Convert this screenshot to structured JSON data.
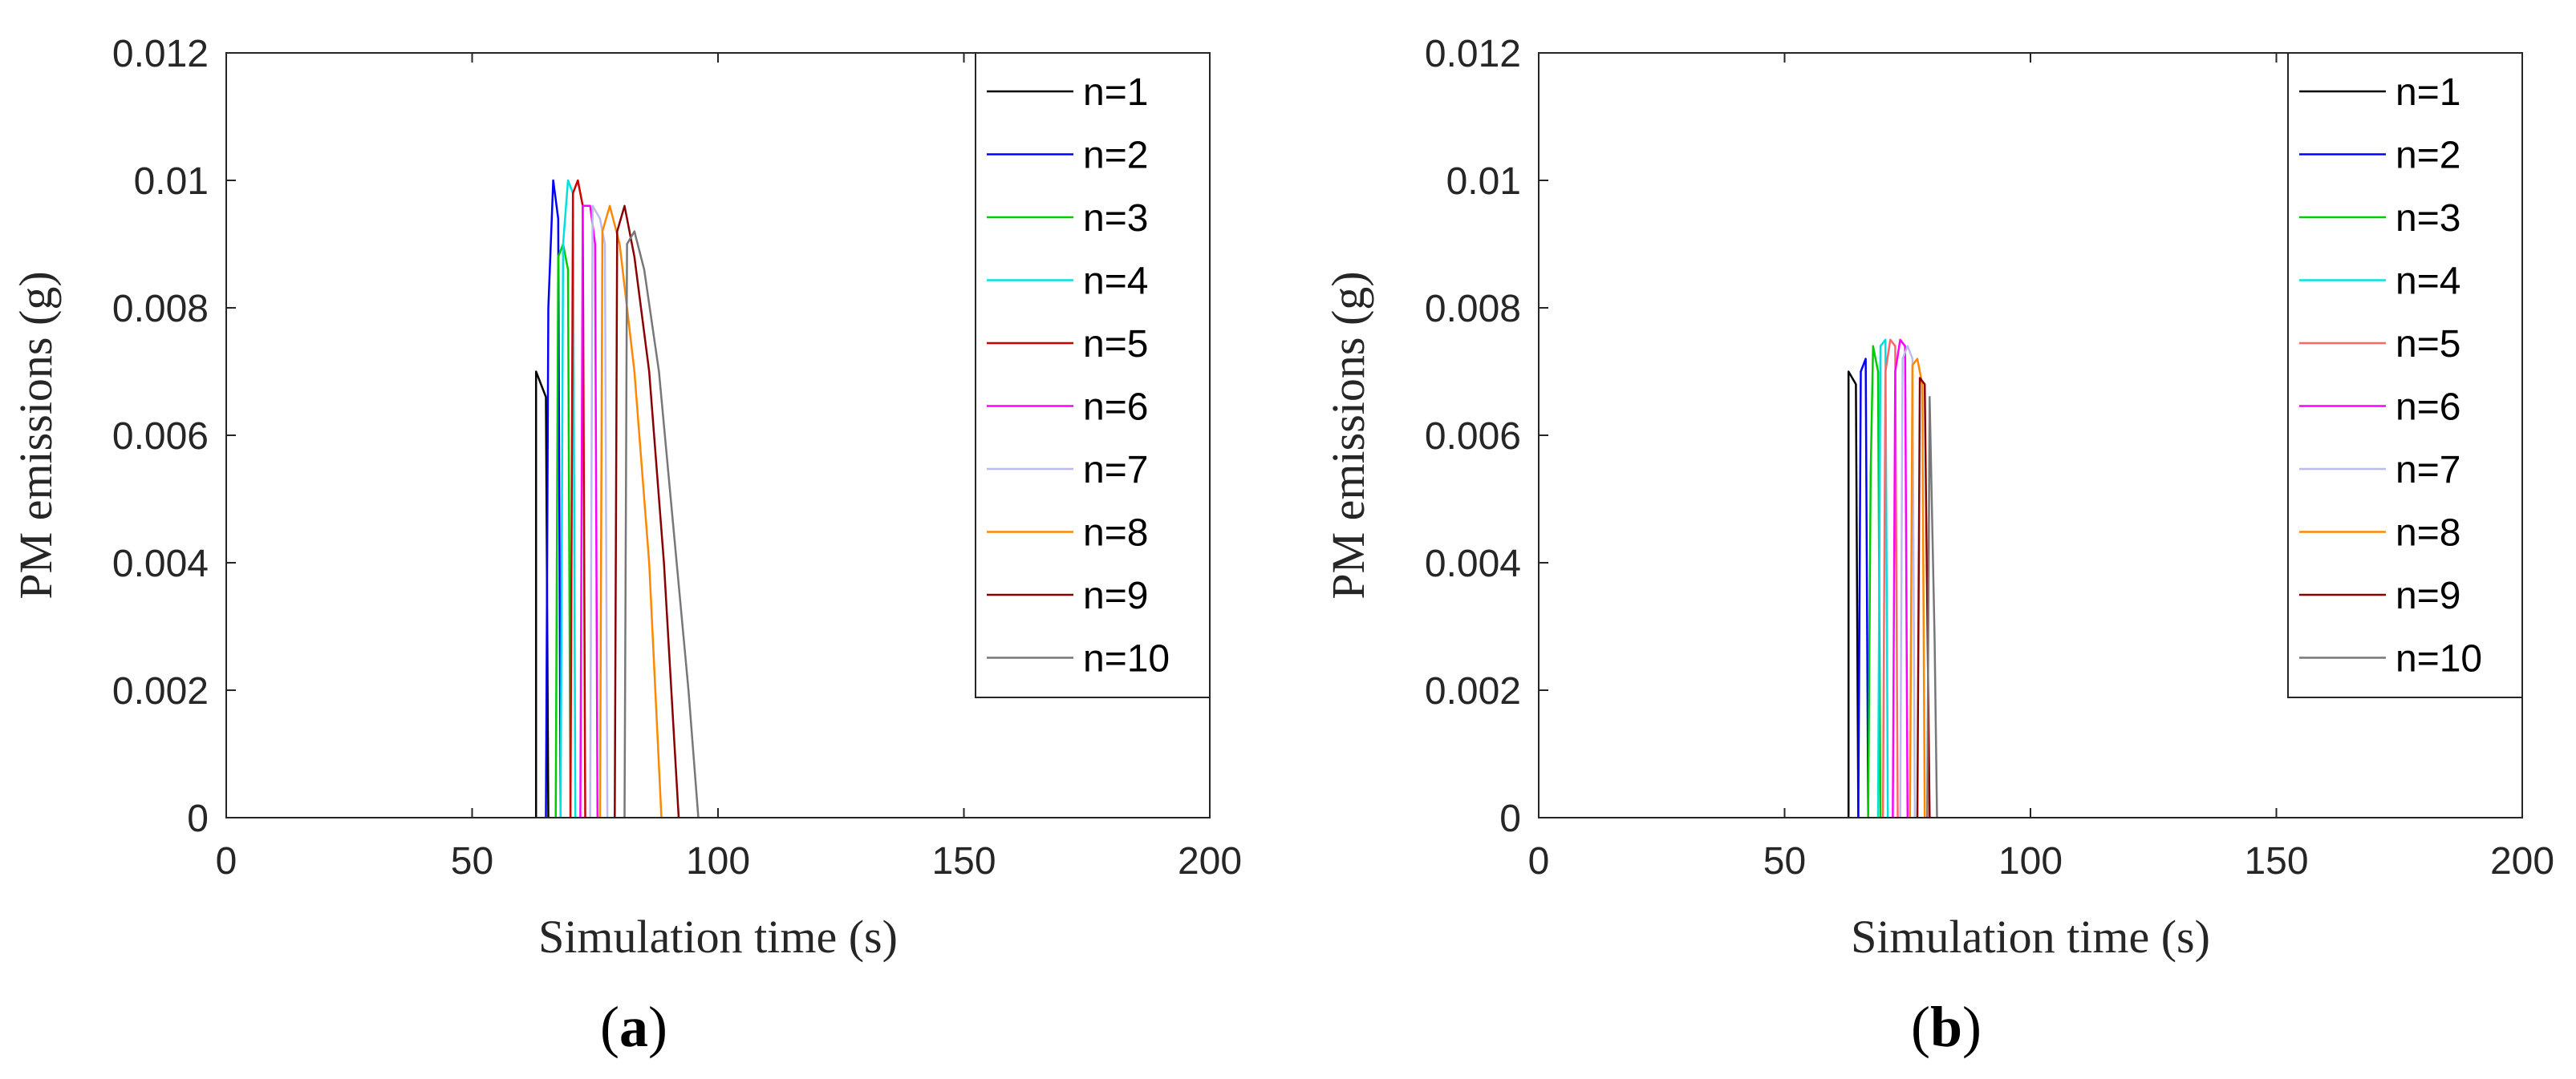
{
  "chart_data": [
    {
      "type": "line",
      "panel_label": "(a)",
      "panel_letter": "a",
      "xlabel": "Simulation time (s)",
      "ylabel": "PM emissions (g)",
      "xlim": [
        0,
        200
      ],
      "ylim": [
        0,
        0.012
      ],
      "xticks": [
        0,
        50,
        100,
        150,
        200
      ],
      "xtick_labels": [
        "0",
        "50",
        "100",
        "150",
        "200"
      ],
      "yticks": [
        0,
        0.002,
        0.004,
        0.006,
        0.008,
        0.01,
        0.012
      ],
      "ytick_labels": [
        "0",
        "0.002",
        "0.004",
        "0.006",
        "0.008",
        "0.01",
        "0.012"
      ],
      "grid": false,
      "legend_position": "top-right",
      "series": [
        {
          "name": "n=1",
          "color": "#000000",
          "points": [
            [
              63,
              0
            ],
            [
              63,
              0.007
            ],
            [
              65,
              0.0066
            ],
            [
              65.5,
              0
            ]
          ]
        },
        {
          "name": "n=2",
          "color": "#0000ff",
          "points": [
            [
              65,
              0
            ],
            [
              65.5,
              0.008
            ],
            [
              66.5,
              0.01
            ],
            [
              67.5,
              0.0094
            ],
            [
              68,
              0
            ]
          ]
        },
        {
          "name": "n=3",
          "color": "#00cc00",
          "points": [
            [
              67,
              0
            ],
            [
              67.5,
              0.0088
            ],
            [
              68.5,
              0.009
            ],
            [
              69.5,
              0.0086
            ],
            [
              70,
              0
            ]
          ]
        },
        {
          "name": "n=4",
          "color": "#00e0e0",
          "points": [
            [
              68,
              0
            ],
            [
              68.5,
              0.009
            ],
            [
              69.5,
              0.01
            ],
            [
              70.5,
              0.0098
            ],
            [
              71,
              0
            ]
          ]
        },
        {
          "name": "n=5",
          "color": "#cc0000",
          "points": [
            [
              70,
              0
            ],
            [
              70.5,
              0.0098
            ],
            [
              71.5,
              0.01
            ],
            [
              72.5,
              0.0096
            ],
            [
              73,
              0
            ]
          ]
        },
        {
          "name": "n=6",
          "color": "#ff00ff",
          "points": [
            [
              72,
              0
            ],
            [
              72.5,
              0.0096
            ],
            [
              74,
              0.0096
            ],
            [
              75,
              0.009
            ],
            [
              75.5,
              0
            ]
          ]
        },
        {
          "name": "n=7",
          "color": "#bbbbee",
          "points": [
            [
              74,
              0
            ],
            [
              74.5,
              0.0096
            ],
            [
              76,
              0.0094
            ],
            [
              77,
              0.009
            ],
            [
              77.5,
              0
            ]
          ]
        },
        {
          "name": "n=8",
          "color": "#ff8800",
          "points": [
            [
              76,
              0
            ],
            [
              76.5,
              0.0092
            ],
            [
              78,
              0.0096
            ],
            [
              80,
              0.009
            ],
            [
              83,
              0.007
            ],
            [
              86,
              0.004
            ],
            [
              88.5,
              0
            ]
          ]
        },
        {
          "name": "n=9",
          "color": "#880000",
          "points": [
            [
              79,
              0
            ],
            [
              79.5,
              0.0092
            ],
            [
              81,
              0.0096
            ],
            [
              83,
              0.0088
            ],
            [
              86,
              0.007
            ],
            [
              89,
              0.004
            ],
            [
              92,
              0
            ]
          ]
        },
        {
          "name": "n=10",
          "color": "#777777",
          "points": [
            [
              81,
              0
            ],
            [
              81.5,
              0.009
            ],
            [
              83,
              0.0092
            ],
            [
              85,
              0.0086
            ],
            [
              88,
              0.007
            ],
            [
              91,
              0.0045
            ],
            [
              94,
              0.002
            ],
            [
              96,
              0
            ]
          ]
        }
      ]
    },
    {
      "type": "line",
      "panel_label": "(b)",
      "panel_letter": "b",
      "xlabel": "Simulation time (s)",
      "ylabel": "PM emissions (g)",
      "xlim": [
        0,
        200
      ],
      "ylim": [
        0,
        0.012
      ],
      "xticks": [
        0,
        50,
        100,
        150,
        200
      ],
      "xtick_labels": [
        "0",
        "50",
        "100",
        "150",
        "200"
      ],
      "yticks": [
        0,
        0.002,
        0.004,
        0.006,
        0.008,
        0.01,
        0.012
      ],
      "ytick_labels": [
        "0",
        "0.002",
        "0.004",
        "0.006",
        "0.008",
        "0.01",
        "0.012"
      ],
      "grid": false,
      "legend_position": "top-right",
      "series": [
        {
          "name": "n=1",
          "color": "#000000",
          "points": [
            [
              63,
              0
            ],
            [
              63,
              0.007
            ],
            [
              64.5,
              0.0068
            ],
            [
              65,
              0
            ]
          ]
        },
        {
          "name": "n=2",
          "color": "#0000ff",
          "points": [
            [
              65,
              0
            ],
            [
              65.5,
              0.007
            ],
            [
              66.5,
              0.0072
            ],
            [
              67,
              0
            ]
          ]
        },
        {
          "name": "n=3",
          "color": "#00cc00",
          "points": [
            [
              67,
              0
            ],
            [
              67.5,
              0.0054
            ],
            [
              68,
              0.0074
            ],
            [
              69,
              0.007
            ],
            [
              69.5,
              0
            ]
          ]
        },
        {
          "name": "n=4",
          "color": "#00e0e0",
          "points": [
            [
              69,
              0
            ],
            [
              69.5,
              0.0074
            ],
            [
              70.5,
              0.0075
            ],
            [
              71,
              0
            ]
          ]
        },
        {
          "name": "n=5",
          "color": "#ff6666",
          "points": [
            [
              70,
              0
            ],
            [
              70.5,
              0.007
            ],
            [
              71.5,
              0.0075
            ],
            [
              72.5,
              0.0074
            ],
            [
              73,
              0
            ]
          ]
        },
        {
          "name": "n=6",
          "color": "#ff00ff",
          "points": [
            [
              72,
              0
            ],
            [
              72.5,
              0.007
            ],
            [
              73.5,
              0.0075
            ],
            [
              74.5,
              0.0074
            ],
            [
              75,
              0
            ]
          ]
        },
        {
          "name": "n=7",
          "color": "#bbbbee",
          "points": [
            [
              73.5,
              0
            ],
            [
              74,
              0.0072
            ],
            [
              75,
              0.0074
            ],
            [
              76,
              0.0072
            ],
            [
              76.5,
              0
            ]
          ]
        },
        {
          "name": "n=8",
          "color": "#ff8800",
          "points": [
            [
              75.5,
              0
            ],
            [
              76,
              0.0071
            ],
            [
              77,
              0.0072
            ],
            [
              78,
              0.0068
            ],
            [
              78.5,
              0
            ]
          ]
        },
        {
          "name": "n=9",
          "color": "#880000",
          "points": [
            [
              77,
              0
            ],
            [
              77.5,
              0.0069
            ],
            [
              78.5,
              0.0068
            ],
            [
              79.5,
              0
            ]
          ]
        },
        {
          "name": "n=10",
          "color": "#777777",
          "points": [
            [
              79,
              0
            ],
            [
              79.5,
              0.0066
            ],
            [
              80.5,
              0.0028
            ],
            [
              81,
              0
            ]
          ]
        }
      ]
    }
  ]
}
